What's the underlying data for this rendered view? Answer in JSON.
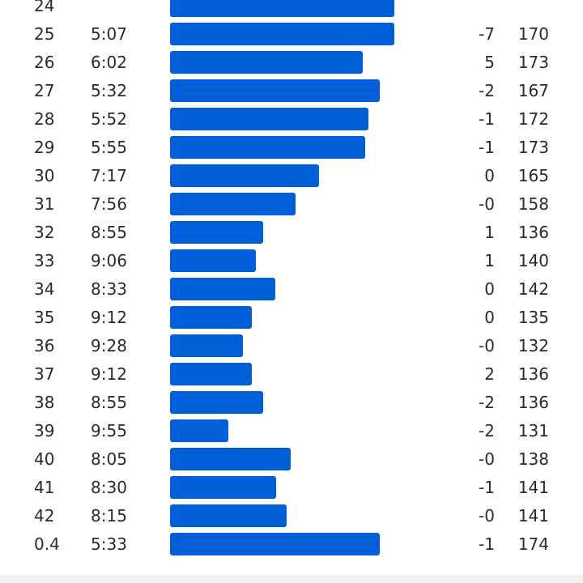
{
  "theme": {
    "bar_color": "#005fd6",
    "text_color": "#2b2b2b",
    "footer_color": "#f0f0f0"
  },
  "splits": {
    "bar_scale_max": 1.0,
    "rows": [
      {
        "km": "24",
        "pace": "",
        "pace_fraction": 0.77,
        "elev": "",
        "hr": ""
      },
      {
        "km": "25",
        "pace": "5:07",
        "pace_fraction": 0.77,
        "elev": "-7",
        "hr": "170"
      },
      {
        "km": "26",
        "pace": "6:02",
        "pace_fraction": 0.66,
        "elev": "5",
        "hr": "173"
      },
      {
        "km": "27",
        "pace": "5:32",
        "pace_fraction": 0.72,
        "elev": "-2",
        "hr": "167"
      },
      {
        "km": "28",
        "pace": "5:52",
        "pace_fraction": 0.68,
        "elev": "-1",
        "hr": "172"
      },
      {
        "km": "29",
        "pace": "5:55",
        "pace_fraction": 0.67,
        "elev": "-1",
        "hr": "173"
      },
      {
        "km": "30",
        "pace": "7:17",
        "pace_fraction": 0.51,
        "elev": "0",
        "hr": "165"
      },
      {
        "km": "31",
        "pace": "7:56",
        "pace_fraction": 0.43,
        "elev": "-0",
        "hr": "158"
      },
      {
        "km": "32",
        "pace": "8:55",
        "pace_fraction": 0.32,
        "elev": "1",
        "hr": "136"
      },
      {
        "km": "33",
        "pace": "9:06",
        "pace_fraction": 0.295,
        "elev": "1",
        "hr": "140"
      },
      {
        "km": "34",
        "pace": "8:33",
        "pace_fraction": 0.36,
        "elev": "0",
        "hr": "142"
      },
      {
        "km": "35",
        "pace": "9:12",
        "pace_fraction": 0.28,
        "elev": "0",
        "hr": "135"
      },
      {
        "km": "36",
        "pace": "9:28",
        "pace_fraction": 0.25,
        "elev": "-0",
        "hr": "132"
      },
      {
        "km": "37",
        "pace": "9:12",
        "pace_fraction": 0.28,
        "elev": "2",
        "hr": "136"
      },
      {
        "km": "38",
        "pace": "8:55",
        "pace_fraction": 0.32,
        "elev": "-2",
        "hr": "136"
      },
      {
        "km": "39",
        "pace": "9:55",
        "pace_fraction": 0.2,
        "elev": "-2",
        "hr": "131"
      },
      {
        "km": "40",
        "pace": "8:05",
        "pace_fraction": 0.415,
        "elev": "-0",
        "hr": "138"
      },
      {
        "km": "41",
        "pace": "8:30",
        "pace_fraction": 0.365,
        "elev": "-1",
        "hr": "141"
      },
      {
        "km": "42",
        "pace": "8:15",
        "pace_fraction": 0.4,
        "elev": "-0",
        "hr": "141"
      },
      {
        "km": "0.4",
        "pace": "5:33",
        "pace_fraction": 0.72,
        "elev": "-1",
        "hr": "174"
      }
    ]
  }
}
